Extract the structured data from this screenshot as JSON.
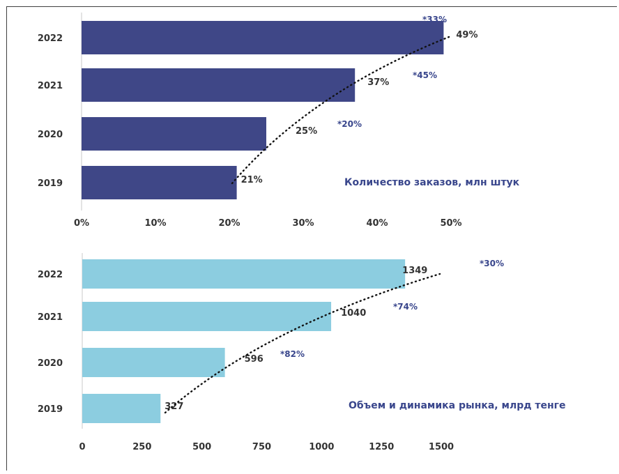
{
  "colors": {
    "top_bar": "#3f4787",
    "bottom_bar": "#8ccde0",
    "accent_text": "#39468c",
    "axis": "#c8c8c8",
    "trend": "#111111"
  },
  "chart_data": [
    {
      "type": "bar",
      "orientation": "horizontal",
      "title": "Количество заказов, млн штук",
      "categories": [
        "2022",
        "2021",
        "2020",
        "2019"
      ],
      "values": [
        49,
        37,
        25,
        21
      ],
      "value_labels": [
        "49%",
        "37%",
        "25%",
        "21%"
      ],
      "growth_labels": [
        "*33%",
        "*45%",
        "*20%",
        ""
      ],
      "xlim": [
        0,
        50
      ],
      "xticks": [
        0,
        10,
        20,
        30,
        40,
        50
      ],
      "xtick_labels": [
        "0%",
        "10%",
        "20%",
        "30%",
        "40%",
        "50%"
      ],
      "trendline": "dotted",
      "grid": false,
      "legend": "none"
    },
    {
      "type": "bar",
      "orientation": "horizontal",
      "title": "Объем и динамика рынка, млрд тенге",
      "categories": [
        "2022",
        "2021",
        "2020",
        "2019"
      ],
      "values": [
        1349,
        1040,
        596,
        327
      ],
      "value_labels": [
        "1349",
        "1040",
        "596",
        "327"
      ],
      "growth_labels": [
        "*30%",
        "*74%",
        "*82%",
        ""
      ],
      "xlim": [
        0,
        1500
      ],
      "xticks": [
        0,
        250,
        500,
        750,
        1000,
        1250,
        1500
      ],
      "xtick_labels": [
        "0",
        "250",
        "500",
        "750",
        "1000",
        "1250",
        "1500"
      ],
      "trendline": "dotted",
      "grid": false,
      "legend": "none"
    }
  ]
}
